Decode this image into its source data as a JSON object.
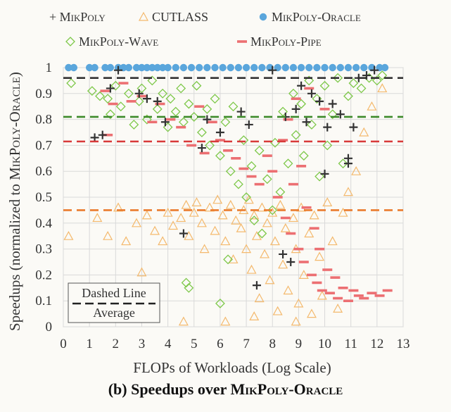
{
  "figure": {
    "caption_prefix": "(b) Speedups over ",
    "caption_name": "MikPoly-Oracle"
  },
  "colors": {
    "mikpoly": "#333333",
    "cutlass": "#f4b96d",
    "oracle": "#5aa6dc",
    "wave": "#7ec84a",
    "pipe": "#ec6f72",
    "avg_mikpoly": "#333333",
    "avg_wave": "#3d8a2a",
    "avg_pipe": "#d83a3a",
    "avg_cutlass": "#ea7b2c"
  },
  "chart_data": {
    "type": "scatter",
    "xlabel": "FLOPs of Workloads (Log Scale)",
    "ylabel_prefix": "Speedups (normalized to ",
    "ylabel_name": "MikPoly-Oracle",
    "ylabel_suffix": ")",
    "xlim": [
      0,
      13
    ],
    "ylim": [
      0,
      1
    ],
    "x_ticks": [
      "0",
      "1",
      "2",
      "3",
      "4",
      "5",
      "6",
      "7",
      "8",
      "9",
      "10",
      "11",
      "12",
      "13"
    ],
    "y_ticks": [
      "0",
      "0.1",
      "0.2",
      "0.3",
      "0.4",
      "0.5",
      "0.6",
      "0.7",
      "0.8",
      "0.9",
      "1"
    ],
    "grid": true,
    "legend": [
      {
        "name": "+ MikPoly",
        "marker": "plus"
      },
      {
        "name": "CUTLASS",
        "marker": "triangle"
      },
      {
        "name": "MikPoly-Oracle",
        "marker": "circle"
      },
      {
        "name": "MikPoly-Wave",
        "marker": "diamond"
      },
      {
        "name": "MikPoly-Pipe",
        "marker": "dash"
      }
    ],
    "averages": [
      {
        "series": "MikPoly",
        "y": 0.96
      },
      {
        "series": "MikPoly-Wave",
        "y": 0.81
      },
      {
        "series": "MikPoly-Pipe",
        "y": 0.715
      },
      {
        "series": "CUTLASS",
        "y": 0.45
      }
    ],
    "average_box": {
      "line1": "Dashed Line",
      "line2": "Average"
    },
    "series": [
      {
        "name": "MikPoly-Oracle",
        "points": [
          [
            0.2,
            1
          ],
          [
            0.4,
            1
          ],
          [
            1,
            1
          ],
          [
            1.2,
            1
          ],
          [
            1.6,
            1
          ],
          [
            1.8,
            1
          ],
          [
            2.1,
            1
          ],
          [
            2.3,
            1
          ],
          [
            2.5,
            1
          ],
          [
            2.8,
            1
          ],
          [
            3.0,
            1
          ],
          [
            3.2,
            1
          ],
          [
            3.4,
            1
          ],
          [
            3.6,
            1
          ],
          [
            3.8,
            1
          ],
          [
            4.0,
            1
          ],
          [
            4.3,
            1
          ],
          [
            4.6,
            1
          ],
          [
            4.9,
            1
          ],
          [
            5.2,
            1
          ],
          [
            5.5,
            1
          ],
          [
            5.8,
            1
          ],
          [
            6.1,
            1
          ],
          [
            6.4,
            1
          ],
          [
            6.7,
            1
          ],
          [
            7.0,
            1
          ],
          [
            7.3,
            1
          ],
          [
            7.6,
            1
          ],
          [
            7.9,
            1
          ],
          [
            8.2,
            1
          ],
          [
            8.5,
            1
          ],
          [
            8.8,
            1
          ],
          [
            9.1,
            1
          ],
          [
            9.4,
            1
          ],
          [
            9.7,
            1
          ],
          [
            10.0,
            1
          ],
          [
            10.3,
            1
          ],
          [
            10.6,
            1
          ],
          [
            10.9,
            1
          ],
          [
            11.2,
            1
          ],
          [
            11.5,
            1
          ],
          [
            11.8,
            1
          ],
          [
            12.1,
            1
          ],
          [
            12.3,
            1
          ]
        ]
      },
      {
        "name": "CUTLASS",
        "points": [
          [
            0.2,
            0.35
          ],
          [
            1.3,
            0.42
          ],
          [
            1.7,
            0.35
          ],
          [
            2.1,
            0.46
          ],
          [
            2.4,
            0.33
          ],
          [
            2.8,
            0.4
          ],
          [
            3.0,
            0.21
          ],
          [
            3.2,
            0.43
          ],
          [
            3.5,
            0.37
          ],
          [
            3.8,
            0.33
          ],
          [
            4.0,
            0.44
          ],
          [
            4.2,
            0.39
          ],
          [
            4.5,
            0.42
          ],
          [
            4.7,
            0.47
          ],
          [
            4.8,
            0.35
          ],
          [
            5.0,
            0.44
          ],
          [
            5.1,
            0.48
          ],
          [
            5.3,
            0.4
          ],
          [
            5.4,
            0.3
          ],
          [
            5.6,
            0.46
          ],
          [
            5.8,
            0.37
          ],
          [
            5.9,
            0.49
          ],
          [
            6.1,
            0.43
          ],
          [
            6.2,
            0.33
          ],
          [
            6.4,
            0.47
          ],
          [
            6.5,
            0.26
          ],
          [
            6.6,
            0.41
          ],
          [
            6.8,
            0.38
          ],
          [
            6.9,
            0.45
          ],
          [
            7.0,
            0.3
          ],
          [
            7.1,
            0.49
          ],
          [
            7.2,
            0.22
          ],
          [
            7.3,
            0.43
          ],
          [
            7.4,
            0.35
          ],
          [
            7.5,
            0.11
          ],
          [
            7.6,
            0.46
          ],
          [
            7.7,
            0.28
          ],
          [
            7.8,
            0.4
          ],
          [
            7.9,
            0.18
          ],
          [
            8.0,
            0.44
          ],
          [
            8.1,
            0.33
          ],
          [
            8.2,
            0.06
          ],
          [
            8.3,
            0.47
          ],
          [
            8.4,
            0.24
          ],
          [
            8.5,
            0.38
          ],
          [
            8.6,
            0.14
          ],
          [
            8.8,
            0.42
          ],
          [
            8.9,
            0.3
          ],
          [
            9.0,
            0.09
          ],
          [
            9.1,
            0.46
          ],
          [
            9.2,
            0.2
          ],
          [
            9.4,
            0.36
          ],
          [
            9.5,
            0.05
          ],
          [
            9.6,
            0.43
          ],
          [
            9.8,
            0.27
          ],
          [
            9.9,
            0.12
          ],
          [
            10.1,
            0.48
          ],
          [
            10.3,
            0.33
          ],
          [
            10.5,
            0.07
          ],
          [
            10.7,
            0.44
          ],
          [
            10.9,
            0.52
          ],
          [
            11.2,
            0.6
          ],
          [
            11.5,
            0.75
          ],
          [
            11.8,
            0.85
          ],
          [
            12.2,
            0.92
          ],
          [
            4.6,
            0.02
          ],
          [
            6.2,
            0.02
          ],
          [
            7.3,
            0.04
          ],
          [
            8.9,
            0.02
          ]
        ]
      },
      {
        "name": "MikPoly-Wave",
        "points": [
          [
            0.3,
            0.94
          ],
          [
            1.1,
            0.91
          ],
          [
            1.4,
            0.89
          ],
          [
            1.7,
            0.88
          ],
          [
            1.8,
            0.82
          ],
          [
            2.0,
            0.93
          ],
          [
            2.2,
            0.85
          ],
          [
            2.5,
            0.9
          ],
          [
            2.7,
            0.78
          ],
          [
            2.9,
            0.87
          ],
          [
            3.0,
            0.92
          ],
          [
            3.2,
            0.8
          ],
          [
            3.4,
            0.95
          ],
          [
            3.6,
            0.84
          ],
          [
            3.8,
            0.9
          ],
          [
            4.0,
            0.77
          ],
          [
            4.1,
            0.88
          ],
          [
            4.3,
            0.83
          ],
          [
            4.5,
            0.92
          ],
          [
            4.6,
            0.79
          ],
          [
            4.8,
            0.86
          ],
          [
            5.0,
            0.81
          ],
          [
            5.1,
            0.93
          ],
          [
            5.3,
            0.75
          ],
          [
            5.5,
            0.84
          ],
          [
            5.6,
            0.7
          ],
          [
            5.8,
            0.88
          ],
          [
            6.0,
            0.66
          ],
          [
            6.2,
            0.79
          ],
          [
            6.4,
            0.6
          ],
          [
            6.5,
            0.85
          ],
          [
            6.7,
            0.55
          ],
          [
            6.9,
            0.72
          ],
          [
            7.0,
            0.5
          ],
          [
            7.2,
            0.62
          ],
          [
            7.3,
            0.41
          ],
          [
            7.5,
            0.68
          ],
          [
            7.6,
            0.36
          ],
          [
            7.8,
            0.57
          ],
          [
            8.0,
            0.45
          ],
          [
            8.1,
            0.71
          ],
          [
            8.3,
            0.52
          ],
          [
            8.4,
            0.83
          ],
          [
            8.6,
            0.63
          ],
          [
            8.8,
            0.9
          ],
          [
            8.9,
            0.74
          ],
          [
            9.1,
            0.86
          ],
          [
            9.2,
            0.66
          ],
          [
            9.4,
            0.95
          ],
          [
            9.5,
            0.78
          ],
          [
            9.7,
            0.88
          ],
          [
            9.8,
            0.58
          ],
          [
            10.0,
            0.93
          ],
          [
            10.1,
            0.7
          ],
          [
            10.3,
            0.82
          ],
          [
            10.5,
            0.96
          ],
          [
            10.7,
            0.63
          ],
          [
            10.9,
            0.89
          ],
          [
            11.1,
            0.94
          ],
          [
            11.4,
            0.92
          ],
          [
            11.7,
            0.96
          ],
          [
            12.0,
            0.95
          ],
          [
            12.2,
            0.97
          ],
          [
            4.7,
            0.17
          ],
          [
            4.8,
            0.15
          ],
          [
            6.0,
            0.09
          ],
          [
            6.3,
            0.26
          ]
        ]
      },
      {
        "name": "MikPoly-Pipe",
        "points": [
          [
            1.6,
            0.91
          ],
          [
            1.7,
            0.74
          ],
          [
            1.9,
            0.86
          ],
          [
            2.3,
            0.94
          ],
          [
            2.6,
            0.87
          ],
          [
            3.0,
            0.89
          ],
          [
            3.4,
            0.79
          ],
          [
            3.7,
            0.86
          ],
          [
            4.1,
            0.8
          ],
          [
            4.5,
            0.77
          ],
          [
            4.9,
            0.7
          ],
          [
            5.2,
            0.85
          ],
          [
            5.4,
            0.67
          ],
          [
            5.7,
            0.79
          ],
          [
            6.0,
            0.72
          ],
          [
            6.3,
            0.68
          ],
          [
            6.6,
            0.65
          ],
          [
            6.9,
            0.61
          ],
          [
            7.2,
            0.58
          ],
          [
            7.5,
            0.55
          ],
          [
            7.8,
            0.66
          ],
          [
            8.0,
            0.6
          ],
          [
            8.2,
            0.5
          ],
          [
            8.4,
            0.72
          ],
          [
            8.5,
            0.42
          ],
          [
            8.6,
            0.8
          ],
          [
            8.7,
            0.36
          ],
          [
            8.8,
            0.55
          ],
          [
            8.9,
            0.88
          ],
          [
            9.0,
            0.3
          ],
          [
            9.1,
            0.62
          ],
          [
            9.2,
            0.25
          ],
          [
            9.3,
            0.46
          ],
          [
            9.4,
            0.92
          ],
          [
            9.5,
            0.2
          ],
          [
            9.6,
            0.38
          ],
          [
            9.7,
            0.17
          ],
          [
            9.8,
            0.3
          ],
          [
            9.9,
            0.14
          ],
          [
            10.0,
            0.84
          ],
          [
            10.1,
            0.22
          ],
          [
            10.2,
            0.13
          ],
          [
            10.4,
            0.19
          ],
          [
            10.5,
            0.11
          ],
          [
            10.7,
            0.15
          ],
          [
            10.9,
            0.1
          ],
          [
            11.1,
            0.14
          ],
          [
            11.3,
            0.12
          ],
          [
            11.5,
            0.11
          ],
          [
            11.8,
            0.13
          ],
          [
            12.1,
            0.12
          ],
          [
            12.4,
            0.14
          ]
        ]
      },
      {
        "name": "MikPoly",
        "points": [
          [
            1.2,
            0.73
          ],
          [
            1.5,
            0.74
          ],
          [
            1.8,
            0.92
          ],
          [
            2.1,
            0.99
          ],
          [
            2.9,
            0.9
          ],
          [
            3.2,
            0.88
          ],
          [
            3.6,
            0.87
          ],
          [
            3.9,
            0.79
          ],
          [
            4.6,
            0.36
          ],
          [
            5.3,
            0.69
          ],
          [
            5.5,
            0.8
          ],
          [
            6.0,
            0.75
          ],
          [
            6.8,
            0.83
          ],
          [
            7.1,
            0.78
          ],
          [
            7.4,
            0.16
          ],
          [
            8.0,
            0.99
          ],
          [
            8.4,
            0.28
          ],
          [
            8.5,
            0.81
          ],
          [
            8.7,
            0.25
          ],
          [
            8.9,
            0.84
          ],
          [
            9.1,
            0.93
          ],
          [
            9.3,
            0.79
          ],
          [
            9.5,
            0.9
          ],
          [
            9.8,
            0.87
          ],
          [
            10.0,
            0.59
          ],
          [
            10.1,
            0.77
          ],
          [
            10.3,
            0.86
          ],
          [
            10.6,
            0.82
          ],
          [
            10.9,
            0.63
          ],
          [
            10.9,
            0.65
          ],
          [
            11.1,
            0.77
          ],
          [
            11.3,
            0.96
          ],
          [
            11.6,
            0.97
          ],
          [
            11.9,
            0.99
          ]
        ]
      }
    ]
  }
}
